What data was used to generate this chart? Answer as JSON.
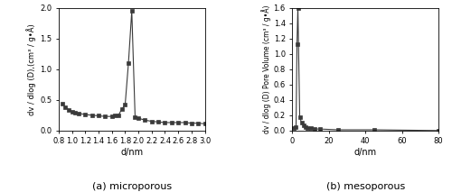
{
  "micro_x": [
    0.85,
    0.9,
    0.95,
    1.0,
    1.05,
    1.1,
    1.2,
    1.3,
    1.4,
    1.5,
    1.6,
    1.65,
    1.7,
    1.75,
    1.8,
    1.85,
    1.9,
    1.95,
    2.0,
    2.1,
    2.2,
    2.3,
    2.4,
    2.5,
    2.6,
    2.7,
    2.8,
    2.9,
    3.0
  ],
  "micro_y": [
    0.44,
    0.38,
    0.34,
    0.31,
    0.29,
    0.28,
    0.26,
    0.25,
    0.24,
    0.23,
    0.23,
    0.24,
    0.25,
    0.35,
    0.42,
    1.1,
    1.95,
    0.22,
    0.2,
    0.17,
    0.15,
    0.14,
    0.13,
    0.13,
    0.13,
    0.13,
    0.12,
    0.12,
    0.11
  ],
  "micro_xlim": [
    0.8,
    3.0
  ],
  "micro_ylim": [
    0.0,
    2.0
  ],
  "micro_xticks": [
    0.8,
    1.0,
    1.2,
    1.4,
    1.6,
    1.8,
    2.0,
    2.2,
    2.4,
    2.6,
    2.8,
    3.0
  ],
  "micro_yticks": [
    0.0,
    0.5,
    1.0,
    1.5,
    2.0
  ],
  "micro_xlabel": "d/nm",
  "micro_ylabel": "dv / dlog (D),(cm³ / g•Å)",
  "micro_label": "(a) microporous",
  "meso_x": [
    1.0,
    2.0,
    2.5,
    3.0,
    4.0,
    5.0,
    6.0,
    7.0,
    8.0,
    10.0,
    12.0,
    15.0,
    25.0,
    45.0,
    80.0
  ],
  "meso_y": [
    0.03,
    0.05,
    1.12,
    1.6,
    0.18,
    0.1,
    0.07,
    0.05,
    0.03,
    0.03,
    0.02,
    0.02,
    0.01,
    0.01,
    0.0
  ],
  "meso_xlim": [
    0,
    80
  ],
  "meso_ylim": [
    0.0,
    1.6
  ],
  "meso_xticks": [
    0,
    20,
    40,
    60,
    80
  ],
  "meso_yticks": [
    0.0,
    0.2,
    0.4,
    0.6,
    0.8,
    1.0,
    1.2,
    1.4,
    1.6
  ],
  "meso_xlabel": "d/nm",
  "meso_ylabel": "dv / dlog (D) Pore Volume (cm³ / g•Å)",
  "meso_label": "(b) mesoporous",
  "marker": "s",
  "markersize": 3.0,
  "linewidth": 0.8,
  "color": "#3a3a3a",
  "bg_color": "#ffffff"
}
